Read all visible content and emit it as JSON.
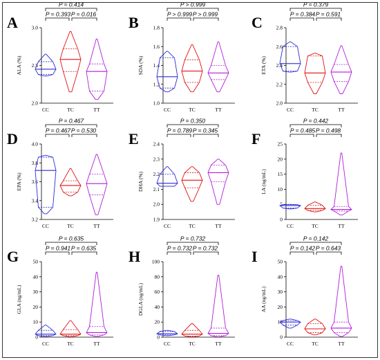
{
  "colors": {
    "CC": "#2a2ad8",
    "TC": "#e01010",
    "TT": "#b21cd9"
  },
  "chart_data": [
    {
      "type": "violin",
      "letter": "A",
      "ylabel": "ALA (%)",
      "ylim": [
        2.0,
        3.0
      ],
      "yticks": [
        "2.0",
        "2.5",
        "3.0"
      ],
      "ytick_values": [
        2.0,
        2.5,
        3.0
      ],
      "categories": [
        "CC",
        "TC",
        "TT"
      ],
      "series": [
        {
          "name": "CC",
          "min": 2.36,
          "q1": 2.38,
          "median": 2.45,
          "q3": 2.55,
          "max": 2.65
        },
        {
          "name": "TC",
          "min": 2.15,
          "q1": 2.42,
          "median": 2.58,
          "q3": 2.72,
          "max": 2.95
        },
        {
          "name": "TT",
          "min": 2.05,
          "q1": 2.16,
          "median": 2.42,
          "q3": 2.52,
          "max": 2.85
        }
      ],
      "comparisons": [
        {
          "pair": [
            "CC",
            "TC"
          ],
          "p": "P = 0.393"
        },
        {
          "pair": [
            "TC",
            "TT"
          ],
          "p": "P = 0.016"
        },
        {
          "pair": [
            "CC",
            "TT"
          ],
          "p": "P = 0.414"
        }
      ]
    },
    {
      "type": "violin",
      "letter": "B",
      "ylabel": "SDA (%)",
      "ylim": [
        1.0,
        1.8
      ],
      "yticks": [
        "1.0",
        "1.2",
        "1.4",
        "1.6",
        "1.8"
      ],
      "ytick_values": [
        1.0,
        1.2,
        1.4,
        1.6,
        1.8
      ],
      "categories": [
        "CC",
        "TC",
        "TT"
      ],
      "series": [
        {
          "name": "CC",
          "min": 1.12,
          "q1": 1.16,
          "median": 1.28,
          "q3": 1.48,
          "max": 1.55
        },
        {
          "name": "TC",
          "min": 1.12,
          "q1": 1.22,
          "median": 1.34,
          "q3": 1.46,
          "max": 1.62
        },
        {
          "name": "TT",
          "min": 1.12,
          "q1": 1.25,
          "median": 1.32,
          "q3": 1.4,
          "max": 1.65
        }
      ],
      "comparisons": [
        {
          "pair": [
            "CC",
            "TC"
          ],
          "p": "P > 0.999"
        },
        {
          "pair": [
            "TC",
            "TT"
          ],
          "p": "P > 0.999"
        },
        {
          "pair": [
            "CC",
            "TT"
          ],
          "p": "P > 0.999"
        }
      ]
    },
    {
      "type": "violin",
      "letter": "C",
      "ylabel": "ETA (%)",
      "ylim": [
        2.0,
        2.8
      ],
      "yticks": [
        "2.0",
        "2.2",
        "2.4",
        "2.6",
        "2.8"
      ],
      "ytick_values": [
        2.0,
        2.2,
        2.4,
        2.6,
        2.8
      ],
      "categories": [
        "CC",
        "TC",
        "TT"
      ],
      "series": [
        {
          "name": "CC",
          "min": 2.33,
          "q1": 2.34,
          "median": 2.42,
          "q3": 2.6,
          "max": 2.65
        },
        {
          "name": "TC",
          "min": 2.1,
          "q1": 2.22,
          "median": 2.32,
          "q3": 2.5,
          "max": 2.53
        },
        {
          "name": "TT",
          "min": 2.1,
          "q1": 2.23,
          "median": 2.33,
          "q3": 2.41,
          "max": 2.61
        }
      ],
      "comparisons": [
        {
          "pair": [
            "CC",
            "TC"
          ],
          "p": "P = 0.384"
        },
        {
          "pair": [
            "TC",
            "TT"
          ],
          "p": "P = 0.591"
        },
        {
          "pair": [
            "CC",
            "TT"
          ],
          "p": "P = 0.379"
        }
      ]
    },
    {
      "type": "violin",
      "letter": "D",
      "ylabel": "EPA (%)",
      "ylim": [
        3.2,
        4.0
      ],
      "yticks": [
        "3.2",
        "3.4",
        "3.6",
        "3.8",
        "4.0"
      ],
      "ytick_values": [
        3.2,
        3.4,
        3.6,
        3.8,
        4.0
      ],
      "categories": [
        "CC",
        "TC",
        "TT"
      ],
      "series": [
        {
          "name": "CC",
          "min": 3.26,
          "q1": 3.33,
          "median": 3.72,
          "q3": 3.86,
          "max": 3.88
        },
        {
          "name": "TC",
          "min": 3.45,
          "q1": 3.49,
          "median": 3.56,
          "q3": 3.61,
          "max": 3.74
        },
        {
          "name": "TT",
          "min": 3.25,
          "q1": 3.46,
          "median": 3.58,
          "q3": 3.68,
          "max": 3.89
        }
      ],
      "comparisons": [
        {
          "pair": [
            "CC",
            "TC"
          ],
          "p": "P = 0.467"
        },
        {
          "pair": [
            "TC",
            "TT"
          ],
          "p": "P = 0.530"
        },
        {
          "pair": [
            "CC",
            "TT"
          ],
          "p": "P = 0.467"
        }
      ]
    },
    {
      "type": "violin",
      "letter": "E",
      "ylabel": "DHA (%)",
      "ylim": [
        1.9,
        2.4
      ],
      "yticks": [
        "1.9",
        "2.0",
        "2.1",
        "2.2",
        "2.3",
        "2.4"
      ],
      "ytick_values": [
        1.9,
        2.0,
        2.1,
        2.2,
        2.3,
        2.4
      ],
      "categories": [
        "CC",
        "TC",
        "TT"
      ],
      "series": [
        {
          "name": "CC",
          "min": 2.12,
          "q1": 2.12,
          "median": 2.14,
          "q3": 2.2,
          "max": 2.25
        },
        {
          "name": "TC",
          "min": 2.02,
          "q1": 2.11,
          "median": 2.16,
          "q3": 2.21,
          "max": 2.25
        },
        {
          "name": "TT",
          "min": 2.0,
          "q1": 2.15,
          "median": 2.21,
          "q3": 2.26,
          "max": 2.3
        }
      ],
      "comparisons": [
        {
          "pair": [
            "CC",
            "TC"
          ],
          "p": "P = 0.789"
        },
        {
          "pair": [
            "TC",
            "TT"
          ],
          "p": "P = 0.345"
        },
        {
          "pair": [
            "CC",
            "TT"
          ],
          "p": "P = 0.350"
        }
      ]
    },
    {
      "type": "violin",
      "letter": "F",
      "ylabel": "LA (ng/mL)",
      "ylim": [
        0,
        25
      ],
      "yticks": [
        "0",
        "5",
        "10",
        "15",
        "20",
        "25"
      ],
      "ytick_values": [
        0,
        5,
        10,
        15,
        20,
        25
      ],
      "categories": [
        "CC",
        "TC",
        "TT"
      ],
      "series": [
        {
          "name": "CC",
          "min": 3.5,
          "q1": 3.8,
          "median": 4.6,
          "q3": 4.9,
          "max": 5.0
        },
        {
          "name": "TC",
          "min": 2.5,
          "q1": 3.0,
          "median": 3.6,
          "q3": 4.7,
          "max": 5.8
        },
        {
          "name": "TT",
          "min": 1.5,
          "q1": 2.8,
          "median": 3.3,
          "q3": 4.3,
          "max": 22.0
        }
      ],
      "comparisons": [
        {
          "pair": [
            "CC",
            "TC"
          ],
          "p": "P = 0.485"
        },
        {
          "pair": [
            "TC",
            "TT"
          ],
          "p": "P = 0.498"
        },
        {
          "pair": [
            "CC",
            "TT"
          ],
          "p": "P = 0.442"
        }
      ]
    },
    {
      "type": "violin",
      "letter": "G",
      "ylabel": "GLA (ng/mL)",
      "ylim": [
        0,
        50
      ],
      "yticks": [
        "0",
        "10",
        "20",
        "30",
        "40",
        "50"
      ],
      "ytick_values": [
        0,
        10,
        20,
        30,
        40,
        50
      ],
      "categories": [
        "CC",
        "TC",
        "TT"
      ],
      "series": [
        {
          "name": "CC",
          "min": 0.5,
          "q1": 1.0,
          "median": 2.0,
          "q3": 4.5,
          "max": 8.0
        },
        {
          "name": "TC",
          "min": 0.3,
          "q1": 1.0,
          "median": 2.0,
          "q3": 5.0,
          "max": 11.0
        },
        {
          "name": "TT",
          "min": 0.5,
          "q1": 1.5,
          "median": 3.0,
          "q3": 7.0,
          "max": 43.0
        }
      ],
      "comparisons": [
        {
          "pair": [
            "CC",
            "TC"
          ],
          "p": "P = 0.941"
        },
        {
          "pair": [
            "TC",
            "TT"
          ],
          "p": "P = 0.635"
        },
        {
          "pair": [
            "CC",
            "TT"
          ],
          "p": "P = 0.635"
        }
      ]
    },
    {
      "type": "violin",
      "letter": "H",
      "ylabel": "DGLA (ng/mL)",
      "ylim": [
        0,
        100
      ],
      "yticks": [
        "0",
        "20",
        "40",
        "60",
        "80",
        "100"
      ],
      "ytick_values": [
        0,
        20,
        40,
        60,
        80,
        100
      ],
      "categories": [
        "CC",
        "TC",
        "TT"
      ],
      "series": [
        {
          "name": "CC",
          "min": 2.0,
          "q1": 3.0,
          "median": 4.5,
          "q3": 7.5,
          "max": 9.0
        },
        {
          "name": "TC",
          "min": 0.5,
          "q1": 1.5,
          "median": 4.0,
          "q3": 9.0,
          "max": 18.0
        },
        {
          "name": "TT",
          "min": 0.5,
          "q1": 2.0,
          "median": 5.0,
          "q3": 12.0,
          "max": 82.0
        }
      ],
      "comparisons": [
        {
          "pair": [
            "CC",
            "TC"
          ],
          "p": "P = 0.732"
        },
        {
          "pair": [
            "TC",
            "TT"
          ],
          "p": "P = 0.732"
        },
        {
          "pair": [
            "CC",
            "TT"
          ],
          "p": "P = 0.732"
        }
      ]
    },
    {
      "type": "violin",
      "letter": "I",
      "ylabel": "AA (ng/mL)",
      "ylim": [
        0,
        50
      ],
      "yticks": [
        "0",
        "10",
        "20",
        "30",
        "40",
        "50"
      ],
      "ytick_values": [
        0,
        10,
        20,
        30,
        40,
        50
      ],
      "categories": [
        "CC",
        "TC",
        "TT"
      ],
      "series": [
        {
          "name": "CC",
          "min": 6.0,
          "q1": 8.0,
          "median": 10.0,
          "q3": 11.0,
          "max": 12.0
        },
        {
          "name": "TC",
          "min": 1.5,
          "q1": 3.0,
          "median": 5.5,
          "q3": 9.0,
          "max": 12.0
        },
        {
          "name": "TT",
          "min": 0.5,
          "q1": 3.0,
          "median": 6.0,
          "q3": 10.0,
          "max": 47.0
        }
      ],
      "comparisons": [
        {
          "pair": [
            "CC",
            "TC"
          ],
          "p": "P = 0.142"
        },
        {
          "pair": [
            "TC",
            "TT"
          ],
          "p": "P = 0.643"
        },
        {
          "pair": [
            "CC",
            "TT"
          ],
          "p": "P = 0.142"
        }
      ]
    }
  ]
}
